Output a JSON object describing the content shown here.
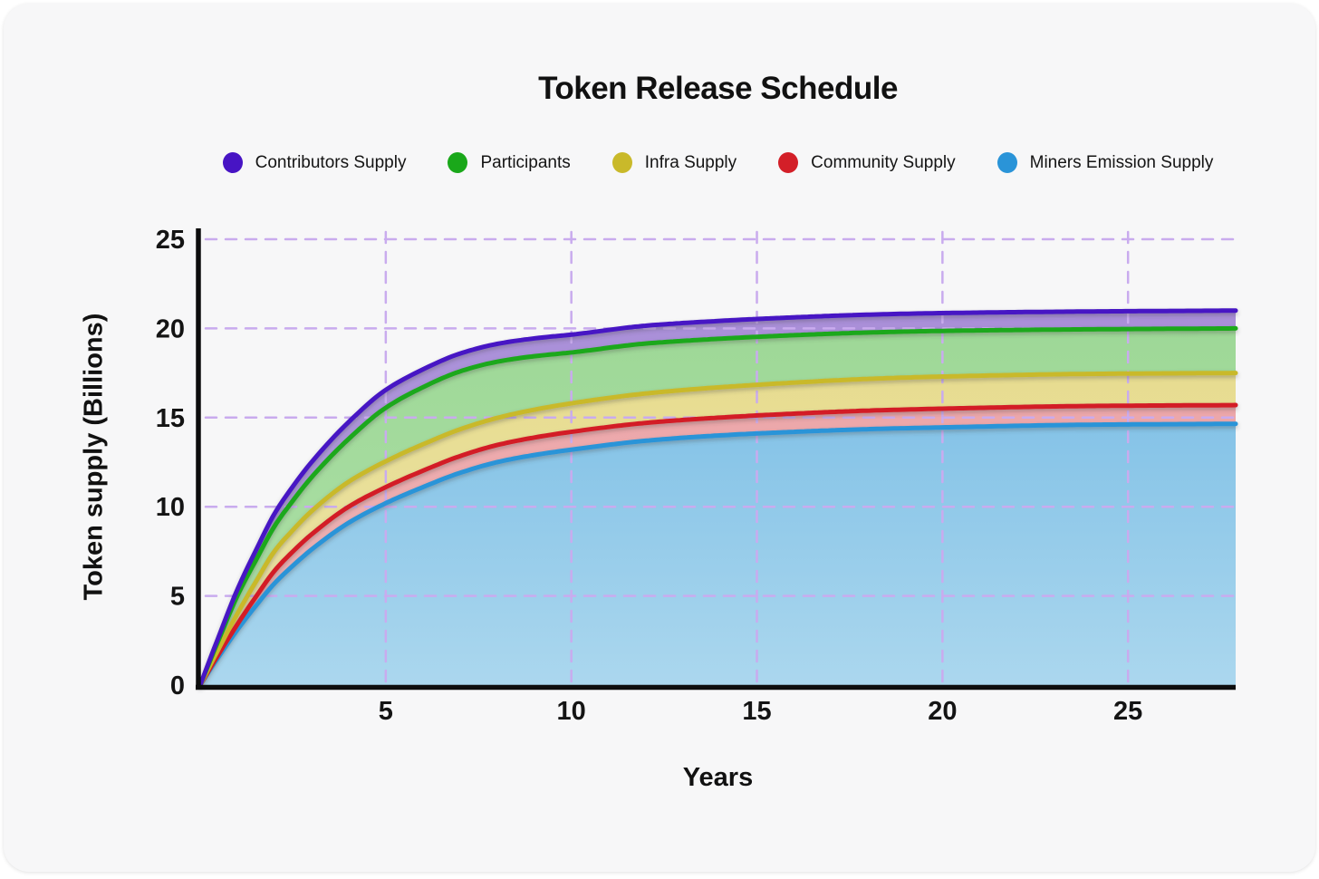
{
  "title": "Token Release Schedule",
  "axes": {
    "x_label": "Years",
    "y_label": "Token supply (Billions)"
  },
  "legend": {
    "items": [
      {
        "label": "Contributors Supply",
        "color": "#4714c4"
      },
      {
        "label": "Participants",
        "color": "#1aa81a"
      },
      {
        "label": "Infra Supply",
        "color": "#c9b92a"
      },
      {
        "label": "Community Supply",
        "color": "#d31f28"
      },
      {
        "label": "Miners Emission Supply",
        "color": "#2a94d8"
      }
    ]
  },
  "chart_data": {
    "type": "area",
    "stacked": true,
    "title": "Token Release Schedule",
    "xlabel": "Years",
    "ylabel": "Token supply (Billions)",
    "xlim": [
      0,
      27.9
    ],
    "ylim": [
      0,
      25
    ],
    "x_ticks": [
      5,
      10,
      15,
      20,
      25
    ],
    "y_ticks": [
      0,
      5,
      10,
      15,
      20,
      25
    ],
    "grid": "dashed",
    "grid_color": "#c9abee",
    "axis_color": "#0d0d0d",
    "legend_position": "top",
    "stack_order": "bottom-to-top",
    "x": [
      0,
      0.5,
      1,
      1.5,
      2,
      2.5,
      3,
      4,
      5,
      6,
      7,
      8,
      9,
      10,
      12,
      14,
      16,
      18,
      20,
      24,
      28
    ],
    "series": [
      {
        "name": "Miners Emission Supply",
        "line_color": "#2a94d8",
        "fill_top": "#85c3e7",
        "fill_bottom": "#abd7ee",
        "plateau": 14.65,
        "values": [
          0,
          1.6,
          3.1,
          4.45,
          5.7,
          6.7,
          7.6,
          9.1,
          10.2,
          11.1,
          11.9,
          12.5,
          12.9,
          13.2,
          13.7,
          14.0,
          14.2,
          14.35,
          14.45,
          14.6,
          14.65
        ]
      },
      {
        "name": "Community Supply",
        "line_color": "#d31f28",
        "fill_top": "#eca6a9",
        "fill_bottom": "#f2bdbf",
        "plateau": 1.05,
        "values": [
          0,
          0.15,
          0.3,
          0.5,
          0.7,
          0.8,
          0.85,
          0.9,
          0.9,
          0.92,
          0.94,
          0.96,
          0.98,
          1.0,
          1.0,
          1.0,
          1.02,
          1.04,
          1.05,
          1.05,
          1.05
        ]
      },
      {
        "name": "Infra Supply",
        "line_color": "#c9b92a",
        "fill_top": "#e7dc90",
        "fill_bottom": "#ece4a8",
        "plateau": 1.8,
        "values": [
          0,
          0.3,
          0.6,
          0.85,
          1.1,
          1.2,
          1.3,
          1.4,
          1.45,
          1.48,
          1.5,
          1.52,
          1.56,
          1.6,
          1.65,
          1.7,
          1.74,
          1.78,
          1.8,
          1.8,
          1.8
        ]
      },
      {
        "name": "Participants",
        "line_color": "#1aa81a",
        "fill_top": "#9ed897",
        "fill_bottom": "#aee0a8",
        "plateau": 2.5,
        "values": [
          0,
          0.5,
          1.0,
          1.2,
          1.4,
          1.65,
          1.9,
          2.4,
          3.0,
          3.2,
          3.25,
          3.15,
          3.0,
          2.85,
          2.8,
          2.72,
          2.66,
          2.6,
          2.56,
          2.5,
          2.5
        ]
      },
      {
        "name": "Contributors Supply",
        "line_color": "#4714c4",
        "fill_top": "#a98ed8",
        "fill_bottom": "#b7a6e0",
        "plateau": 1.0,
        "values": [
          0,
          0.18,
          0.35,
          0.55,
          0.7,
          0.8,
          0.85,
          0.95,
          1.0,
          1.0,
          1.0,
          1.0,
          1.0,
          1.0,
          1.0,
          1.0,
          1.0,
          1.0,
          1.0,
          1.0,
          1.0
        ]
      }
    ],
    "total_supply_plateau": 21.0
  }
}
